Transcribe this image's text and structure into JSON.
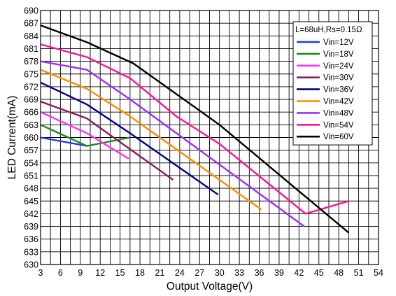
{
  "chart_data": {
    "type": "line",
    "title": "",
    "xlabel": "Output Voltage(V)",
    "ylabel": "LED Current(mA)",
    "xlim": [
      3,
      54
    ],
    "ylim": [
      630,
      690
    ],
    "x_ticks": [
      "3",
      "6",
      "9",
      "12",
      "15",
      "18",
      "21",
      "24",
      "27",
      "30",
      "33",
      "36",
      "39",
      "42",
      "45",
      "48",
      "51",
      "54"
    ],
    "y_ticks": [
      "630",
      "633",
      "636",
      "639",
      "642",
      "645",
      "648",
      "651",
      "654",
      "657",
      "660",
      "663",
      "666",
      "669",
      "672",
      "675",
      "678",
      "681",
      "684",
      "687",
      "690"
    ],
    "minor_grid_x_step": 1.5,
    "grid": true,
    "legend_title": "L=68uH,Rs=0.15Ω",
    "legend_position": "top-right",
    "series": [
      {
        "name": "Vin=12V",
        "color": "#1f3fe0",
        "x": [
          3,
          10
        ],
        "y": [
          660,
          658
        ]
      },
      {
        "name": "Vin=18V",
        "color": "#1f8a1f",
        "x": [
          3,
          10,
          16.5
        ],
        "y": [
          663,
          658,
          660
        ]
      },
      {
        "name": "Vin=24V",
        "color": "#ff33ff",
        "x": [
          3,
          10,
          16.3
        ],
        "y": [
          666,
          661,
          655
        ]
      },
      {
        "name": "Vin=30V",
        "color": "#8b1e5e",
        "x": [
          3,
          10,
          23
        ],
        "y": [
          668.5,
          664.5,
          650
        ]
      },
      {
        "name": "Vin=36V",
        "color": "#00008b",
        "x": [
          3,
          10,
          16.5,
          29.8
        ],
        "y": [
          673,
          667.8,
          661,
          646.5
        ]
      },
      {
        "name": "Vin=42V",
        "color": "#ff8c00",
        "x": [
          3,
          10,
          16.5,
          36.3
        ],
        "y": [
          676,
          671.5,
          665,
          643
        ]
      },
      {
        "name": "Vin=48V",
        "color": "#9b30ff",
        "x": [
          3,
          10,
          16.5,
          42.8
        ],
        "y": [
          678,
          676,
          669,
          639
        ]
      },
      {
        "name": "Vin=54V",
        "color": "#ff1493",
        "x": [
          3,
          10,
          16.5,
          23.5,
          30,
          43,
          49.5
        ],
        "y": [
          682,
          679,
          674,
          665,
          658.5,
          642,
          645
        ]
      },
      {
        "name": "Vin=60V",
        "color": "#000000",
        "x": [
          3,
          10,
          17,
          30,
          49.5
        ],
        "y": [
          686.5,
          682.5,
          677.5,
          663,
          637.5
        ]
      }
    ]
  }
}
